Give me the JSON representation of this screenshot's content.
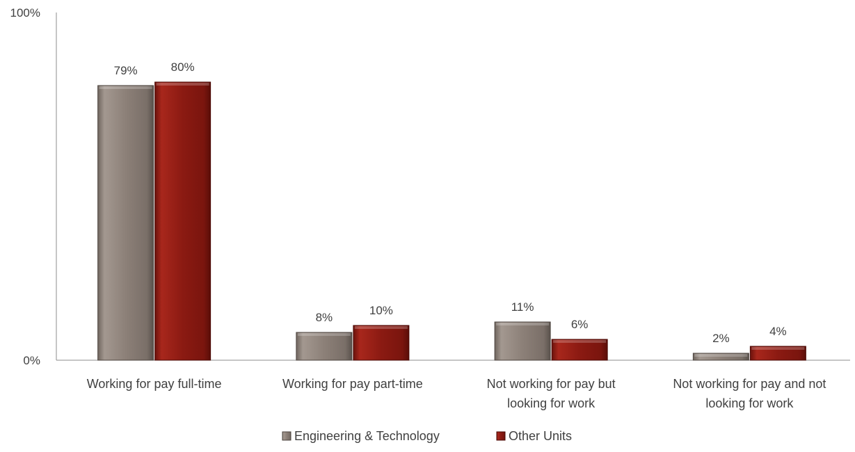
{
  "chart_data": {
    "type": "bar",
    "title": "",
    "xlabel": "",
    "ylabel": "",
    "ylim": [
      0,
      100
    ],
    "y_ticks": [
      "0%",
      "100%"
    ],
    "categories": [
      [
        "Working for pay full-time"
      ],
      [
        "Working for pay part-time"
      ],
      [
        "Not working for pay but",
        "looking for work"
      ],
      [
        "Not working for pay and not",
        "looking for work"
      ]
    ],
    "series": [
      {
        "name": "Engineering & Technology",
        "color": "#8c8078",
        "values": [
          79,
          8,
          11,
          2
        ],
        "labels": [
          "79%",
          "8%",
          "11%",
          "2%"
        ]
      },
      {
        "name": "Other Units",
        "color": "#8b1a12",
        "values": [
          80,
          10,
          6,
          4
        ],
        "labels": [
          "80%",
          "10%",
          "6%",
          "4%"
        ]
      }
    ],
    "legend_position": "bottom",
    "grid": false
  }
}
